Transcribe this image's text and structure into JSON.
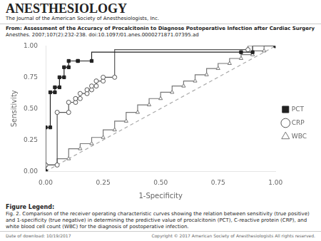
{
  "chart_data": {
    "type": "line",
    "title": "ANESTHESIOLOGY",
    "subtitle": "The Journal of the American Society of Anesthesiologists, Inc.",
    "annotations": [
      "From: Assessment of the Accuracy of Procalcitonin to Diagnose Postoperative Infection after Cardiac Surgery",
      "Anesthes. 2007;107(2):232-238. doi:10.1097/01.anes.0000271871.07395.ad",
      "Figure Legend:",
      "Fig. 2. Comparison of the receiver operating characteristic curves showing the relation between sensitivity (true positive) and 1-specificity (true negative) in determining the predictive value of procalcitonin (PCT), C-reactive protein (CRP), and white blood cell count (WBC) for the diagnosis of postoperative infection.",
      "Date of download:  10/19/2017",
      "Copyright © 2017 American Society of Anesthesiologists  All rights reserved."
    ],
    "xlabel": "1-Specificity",
    "ylabel": "Sensitivity",
    "series": [
      {
        "name": "PCT",
        "color": "#222222",
        "marker": "filled_square",
        "line_style": "steps",
        "x": [
          0.0,
          0.0,
          0.02,
          0.02,
          0.04,
          0.04,
          0.06,
          0.06,
          0.08,
          0.08,
          0.1,
          0.1,
          0.14,
          0.14,
          0.2,
          0.85,
          0.9,
          1.0
        ],
        "values": [
          0.0,
          0.35,
          0.35,
          0.63,
          0.63,
          0.67,
          0.67,
          0.75,
          0.75,
          0.83,
          0.83,
          0.88,
          0.88,
          0.88,
          0.88,
          0.95,
          0.95,
          1.0
        ]
      },
      {
        "name": "CRP",
        "color": "#555555",
        "marker": "open_circle",
        "line_style": "steps",
        "x": [
          0.0,
          0.0,
          0.05,
          0.05,
          0.1,
          0.1,
          0.13,
          0.13,
          0.15,
          0.15,
          0.18,
          0.18,
          0.2,
          0.2,
          0.22,
          0.22,
          0.25,
          0.25,
          0.3,
          0.88,
          1.0
        ],
        "values": [
          0.0,
          0.05,
          0.05,
          0.47,
          0.47,
          0.55,
          0.55,
          0.58,
          0.58,
          0.62,
          0.62,
          0.65,
          0.65,
          0.68,
          0.68,
          0.72,
          0.72,
          0.75,
          0.75,
          0.97,
          1.0
        ]
      },
      {
        "name": "WBC",
        "color": "#777777",
        "marker": "open_triangle",
        "line_style": "steps",
        "x": [
          0.0,
          0.05,
          0.1,
          0.15,
          0.2,
          0.25,
          0.3,
          0.35,
          0.4,
          0.45,
          0.5,
          0.55,
          0.6,
          0.65,
          0.7,
          0.75,
          0.8,
          0.85,
          0.9,
          0.95,
          1.0
        ],
        "values": [
          0.0,
          0.05,
          0.1,
          0.18,
          0.22,
          0.27,
          0.33,
          0.4,
          0.47,
          0.53,
          0.58,
          0.63,
          0.68,
          0.72,
          0.77,
          0.82,
          0.86,
          0.9,
          0.93,
          0.96,
          1.0
        ]
      },
      {
        "color": "#aaaaaa",
        "line_style": "dashed",
        "x": [
          0.0,
          1.0
        ],
        "values": [
          0.0,
          1.0
        ]
      }
    ],
    "xlim": [
      0,
      1
    ],
    "ylim": [
      0,
      1
    ],
    "xticks": [
      {
        "value": 0,
        "label": "0.00"
      },
      {
        "value": 0.25,
        "label": "0.25"
      },
      {
        "value": 0.5,
        "label": "0.50"
      },
      {
        "value": 0.75,
        "label": "0.75"
      },
      {
        "value": 1,
        "label": "1.00"
      }
    ],
    "yticks": [
      {
        "value": 0,
        "label": "0.00"
      },
      {
        "value": 0.25,
        "label": "0.25"
      },
      {
        "value": 0.5,
        "label": "0.50"
      },
      {
        "value": 0.75,
        "label": "0.75"
      },
      {
        "value": 1,
        "label": "1.00"
      }
    ],
    "legend": "right",
    "grid": false
  }
}
